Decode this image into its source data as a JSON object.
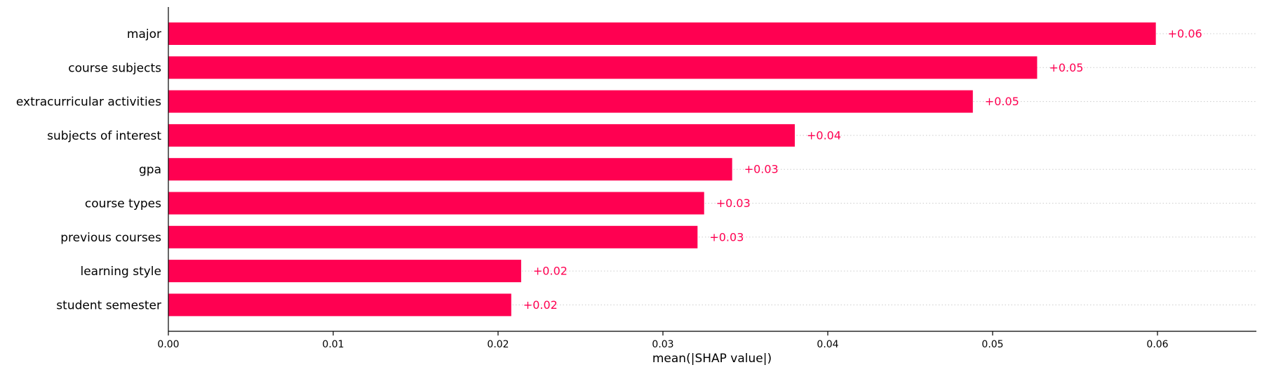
{
  "chart_data": {
    "type": "bar",
    "orientation": "horizontal",
    "categories": [
      "major",
      "course subjects",
      "extracurricular activities",
      "subjects of interest",
      "gpa",
      "course types",
      "previous courses",
      "learning style",
      "student semester"
    ],
    "values": [
      0.0599,
      0.0527,
      0.0488,
      0.038,
      0.0342,
      0.0325,
      0.0321,
      0.0214,
      0.0208
    ],
    "data_labels": [
      "+0.06",
      "+0.05",
      "+0.05",
      "+0.04",
      "+0.03",
      "+0.03",
      "+0.03",
      "+0.02",
      "+0.02"
    ],
    "title": "",
    "xlabel": "mean(|SHAP value|)",
    "ylabel": "",
    "xlim": [
      0,
      0.066
    ],
    "xticks": [
      0.0,
      0.01,
      0.02,
      0.03,
      0.04,
      0.05,
      0.06
    ],
    "xtick_labels": [
      "0.00",
      "0.01",
      "0.02",
      "0.03",
      "0.04",
      "0.05",
      "0.06"
    ],
    "grid": "dotted horizontal row lines",
    "bar_color": "#ff0051",
    "label_color": "#ff0051",
    "gridline_color": "#cccccc"
  }
}
